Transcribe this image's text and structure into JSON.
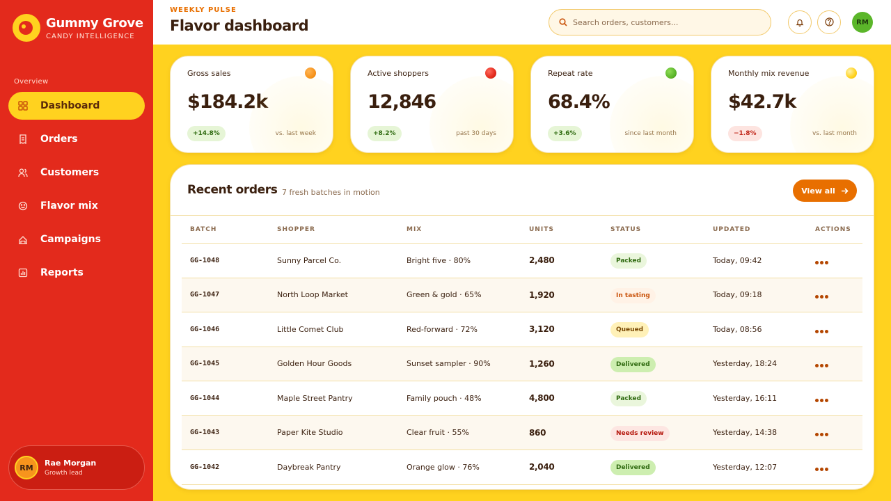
{
  "brand": {
    "name": "Gummy Grove",
    "subtitle": "CANDY INTELLIGENCE"
  },
  "sidebar": {
    "section_label": "Overview",
    "items": [
      {
        "label": "Dashboard",
        "icon": "grid-icon",
        "active": true
      },
      {
        "label": "Orders",
        "icon": "receipt-icon"
      },
      {
        "label": "Customers",
        "icon": "users-icon"
      },
      {
        "label": "Flavor mix",
        "icon": "smile-icon"
      },
      {
        "label": "Campaigns",
        "icon": "megaphone-icon"
      },
      {
        "label": "Reports",
        "icon": "bar-chart-icon"
      }
    ],
    "user": {
      "initials": "RM",
      "name": "Rae Morgan",
      "role": "Growth lead"
    }
  },
  "header": {
    "eyebrow": "WEEKLY PULSE",
    "title": "Flavor dashboard",
    "search_placeholder": "Search orders, customers...",
    "avatar_initials": "RM"
  },
  "stats": [
    {
      "label": "Gross sales",
      "value": "$184.2k",
      "delta": "+14.8%",
      "trend": "up",
      "note": "vs. last week",
      "dot_color": "#f7941d"
    },
    {
      "label": "Active shoppers",
      "value": "12,846",
      "delta": "+8.2%",
      "trend": "up",
      "note": "past 30 days",
      "dot_color": "#e32a1c"
    },
    {
      "label": "Repeat rate",
      "value": "68.4%",
      "delta": "+3.6%",
      "trend": "up",
      "note": "since last month",
      "dot_color": "#5bb62a"
    },
    {
      "label": "Monthly mix revenue",
      "value": "$42.7k",
      "delta": "−1.8%",
      "trend": "down",
      "note": "vs. last month",
      "dot_color": "#ffd21f"
    }
  ],
  "orders": {
    "title": "Recent orders",
    "subtitle": "7 fresh batches in motion",
    "view_all_label": "View all",
    "columns": [
      "BATCH",
      "SHOPPER",
      "MIX",
      "UNITS",
      "STATUS",
      "UPDATED",
      "ACTIONS"
    ],
    "rows": [
      {
        "batch": "GG-1048",
        "shopper": "Sunny Parcel Co.",
        "mix": "Bright five · 80%",
        "units": "2,480",
        "status": "Packed",
        "status_kind": "packed",
        "updated": "Today, 09:42"
      },
      {
        "batch": "GG-1047",
        "shopper": "North Loop Market",
        "mix": "Green & gold · 65%",
        "units": "1,920",
        "status": "In tasting",
        "status_kind": "tasting",
        "updated": "Today, 09:18"
      },
      {
        "batch": "GG-1046",
        "shopper": "Little Comet Club",
        "mix": "Red-forward · 72%",
        "units": "3,120",
        "status": "Queued",
        "status_kind": "queued",
        "updated": "Today, 08:56"
      },
      {
        "batch": "GG-1045",
        "shopper": "Golden Hour Goods",
        "mix": "Sunset sampler · 90%",
        "units": "1,260",
        "status": "Delivered",
        "status_kind": "delivered",
        "updated": "Yesterday, 18:24"
      },
      {
        "batch": "GG-1044",
        "shopper": "Maple Street Pantry",
        "mix": "Family pouch · 48%",
        "units": "4,800",
        "status": "Packed",
        "status_kind": "packed",
        "updated": "Yesterday, 16:11"
      },
      {
        "batch": "GG-1043",
        "shopper": "Paper Kite Studio",
        "mix": "Clear fruit · 55%",
        "units": "860",
        "status": "Needs review",
        "status_kind": "review",
        "updated": "Yesterday, 14:38"
      },
      {
        "batch": "GG-1042",
        "shopper": "Daybreak Pantry",
        "mix": "Orange glow · 76%",
        "units": "2,040",
        "status": "Delivered",
        "status_kind": "delivered",
        "updated": "Yesterday, 12:07"
      }
    ]
  }
}
